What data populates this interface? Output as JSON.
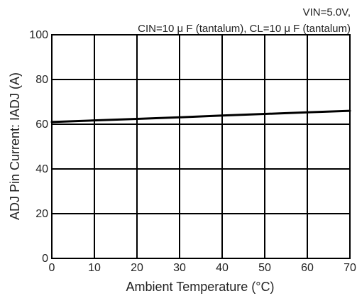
{
  "chart_data": {
    "type": "line",
    "annotation_line1": "VIN=5.0V,",
    "annotation_line2": "CIN=10 μ F (tantalum), CL=10 μ F (tantalum)",
    "xlabel": "Ambient Temperature (°C)",
    "ylabel": "ADJ Pin Current: IADJ (A)",
    "xlim": [
      0,
      70
    ],
    "ylim": [
      0,
      100
    ],
    "xticks": [
      0,
      10,
      20,
      30,
      40,
      50,
      60,
      70
    ],
    "yticks": [
      0,
      20,
      40,
      60,
      80,
      100
    ],
    "grid": true,
    "series": [
      {
        "x": [
          0,
          10,
          20,
          30,
          40,
          50,
          60,
          70
        ],
        "values": [
          61,
          61.7,
          62.4,
          63.1,
          63.9,
          64.6,
          65.3,
          66
        ]
      }
    ],
    "colors": {
      "frame": "#000000",
      "grid": "#000000",
      "line": "#000000",
      "text": "#222222"
    }
  }
}
